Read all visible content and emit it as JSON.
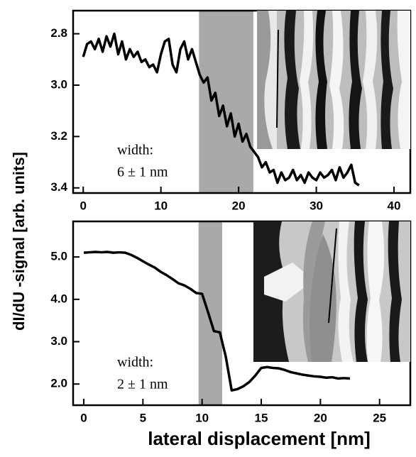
{
  "chart_data": [
    {
      "type": "line",
      "x": [
        0,
        0.5,
        1,
        1.5,
        2,
        2.5,
        3,
        3.5,
        4,
        4.5,
        5,
        5.5,
        6,
        6.5,
        7,
        7.5,
        8,
        8.5,
        9,
        9.5,
        10,
        10.5,
        11,
        11.5,
        12,
        12.5,
        13,
        13.5,
        14,
        14.5,
        15,
        15.5,
        16,
        16.5,
        17,
        17.5,
        18,
        18.5,
        19,
        19.5,
        20,
        20.5,
        21,
        21.5,
        22,
        22.5,
        23,
        23.5,
        24,
        24.5,
        25,
        25.5,
        26,
        26.5,
        27,
        27.5,
        28,
        28.5,
        29,
        29.5,
        30,
        30.5,
        31,
        31.5,
        32,
        32.5,
        33,
        33.5,
        34,
        34.5,
        35,
        35.5
      ],
      "values": [
        2.89,
        2.84,
        2.83,
        2.86,
        2.82,
        2.87,
        2.81,
        2.85,
        2.8,
        2.88,
        2.83,
        2.9,
        2.86,
        2.89,
        2.87,
        2.91,
        2.9,
        2.93,
        2.92,
        2.95,
        2.88,
        2.83,
        2.82,
        2.92,
        2.95,
        2.86,
        2.83,
        2.9,
        2.86,
        2.91,
        2.96,
        2.99,
        2.97,
        3.06,
        3.03,
        3.12,
        3.08,
        3.16,
        3.11,
        3.2,
        3.15,
        3.22,
        3.19,
        3.24,
        3.26,
        3.28,
        3.32,
        3.3,
        3.34,
        3.33,
        3.38,
        3.34,
        3.37,
        3.36,
        3.33,
        3.37,
        3.35,
        3.38,
        3.34,
        3.36,
        3.37,
        3.34,
        3.36,
        3.35,
        3.33,
        3.37,
        3.32,
        3.36,
        3.34,
        3.31,
        3.38,
        3.39
      ],
      "color": "#000000",
      "highlight": [
        14.9,
        21.9
      ],
      "highlight_color": "#a9a9a9",
      "xlim": [
        -1.3,
        42.1
      ],
      "xticks": [
        0,
        10,
        20,
        30,
        40
      ],
      "ylim": [
        3.42,
        2.71
      ],
      "yticks": [
        2.8,
        {
          "value": 3,
          "label": "3.0"
        },
        3.2,
        3.4
      ],
      "annotations": [
        "width:",
        "6 ± 1 nm"
      ]
    },
    {
      "type": "line",
      "x": [
        0,
        0.5,
        1,
        1.5,
        2,
        2.5,
        3,
        3.5,
        4,
        4.5,
        5,
        5.5,
        6,
        6.5,
        7,
        7.5,
        8,
        8.5,
        9,
        9.5,
        10,
        10.5,
        11,
        11.5,
        12,
        12.5,
        13,
        13.5,
        14,
        14.5,
        15,
        15.5,
        16,
        16.5,
        17,
        17.5,
        18,
        18.5,
        19,
        19.5,
        20,
        20.5,
        21,
        21.5,
        22,
        22.5
      ],
      "values": [
        5.1,
        5.11,
        5.12,
        5.11,
        5.12,
        5.1,
        5.11,
        5.1,
        5.05,
        4.98,
        4.9,
        4.82,
        4.75,
        4.65,
        4.57,
        4.48,
        4.38,
        4.33,
        4.25,
        4.15,
        4.13,
        3.7,
        3.25,
        3.22,
        2.65,
        1.85,
        1.88,
        1.95,
        2.05,
        2.2,
        2.38,
        2.4,
        2.38,
        2.37,
        2.33,
        2.28,
        2.25,
        2.22,
        2.2,
        2.18,
        2.17,
        2.15,
        2.16,
        2.13,
        2.14,
        2.13
      ],
      "color": "#000000",
      "highlight": [
        9.7,
        11.7
      ],
      "highlight_color": "#a9a9a9",
      "xlim": [
        -0.9,
        27.6
      ],
      "xticks": [
        0,
        5,
        10,
        15,
        20,
        25
      ],
      "ylim": [
        1.5,
        5.84
      ],
      "yticks": [
        {
          "value": 2,
          "label": "2.0"
        },
        {
          "value": 3,
          "label": "3.0"
        },
        {
          "value": 4,
          "label": "4.0"
        },
        {
          "value": 5,
          "label": "5.0"
        }
      ],
      "annotations": [
        "width:",
        "2 ± 1 nm"
      ]
    }
  ],
  "ylabel": "dI/dU -signal [arb. units]",
  "xlabel": "lateral displacement [nm]"
}
